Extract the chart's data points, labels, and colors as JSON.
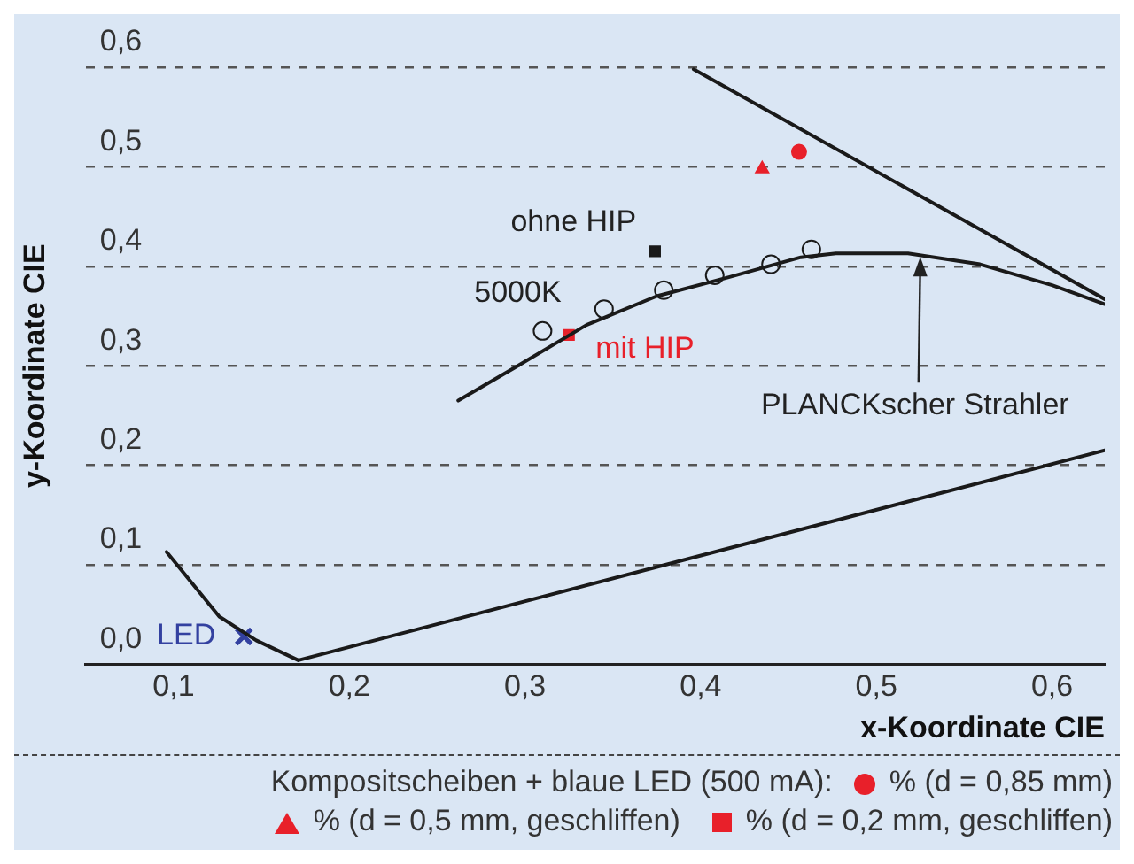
{
  "chart_data": {
    "type": "scatter",
    "xlabel": "x-Koordinate CIE",
    "ylabel": "y-Koordinate CIE",
    "legend_title": "Kompositscheiben + blaue LED (500 mA):",
    "xlim": [
      0.05,
      0.63
    ],
    "ylim": [
      0,
      0.6
    ],
    "xticks": [
      {
        "value": 0.1,
        "label": "0,1"
      },
      {
        "value": 0.2,
        "label": "0,2"
      },
      {
        "value": 0.3,
        "label": "0,3"
      },
      {
        "value": 0.4,
        "label": "0,4"
      },
      {
        "value": 0.5,
        "label": "0,5"
      },
      {
        "value": 0.6,
        "label": "0,6"
      }
    ],
    "yticks": [
      {
        "value": 0,
        "label": "0,0"
      },
      {
        "value": 0.1,
        "label": "0,1"
      },
      {
        "value": 0.2,
        "label": "0,2"
      },
      {
        "value": 0.3,
        "label": "0,3"
      },
      {
        "value": 0.4,
        "label": "0,4"
      },
      {
        "value": 0.5,
        "label": "0,5"
      },
      {
        "value": 0.6,
        "label": "0,6"
      }
    ],
    "grid": "y",
    "legend": "bottom",
    "series": [
      {
        "type": "line",
        "color": "#1a1a1a",
        "marker": "none",
        "x": [
          0.096,
          0.126,
          0.147,
          0.171,
          0.63
        ],
        "values": [
          0.113,
          0.048,
          0.024,
          0.004,
          0.215
        ]
      },
      {
        "type": "line",
        "color": "#1a1a1a",
        "marker": "none",
        "x": [
          0.396,
          0.63
        ],
        "values": [
          0.598,
          0.367
        ]
      },
      {
        "type": "line",
        "color": "#1a1a1a",
        "marker": "none",
        "x": [
          0.262,
          0.294,
          0.335,
          0.375,
          0.416,
          0.457,
          0.477,
          0.518,
          0.559,
          0.6,
          0.63
        ],
        "values": [
          0.265,
          0.298,
          0.341,
          0.37,
          0.389,
          0.409,
          0.413,
          0.413,
          0.402,
          0.381,
          0.362
        ]
      },
      {
        "type": "scatter",
        "color": "#1a1a1a",
        "marker": "circle",
        "x": [
          0.31,
          0.345,
          0.379,
          0.408,
          0.44,
          0.463
        ],
        "values": [
          0.335,
          0.357,
          0.376,
          0.391,
          0.402,
          0.417
        ]
      },
      {
        "name": "% (d = 0,85 mm)",
        "color": "#e8202a",
        "marker": "circle",
        "x": [
          0.456
        ],
        "values": [
          0.515
        ]
      },
      {
        "name": "% (d = 0,5 mm, geschliffen)",
        "color": "#e8202a",
        "marker": "triangle",
        "x": [
          0.435
        ],
        "values": [
          0.498
        ]
      },
      {
        "name": "% (d = 0,2 mm, geschliffen)",
        "color": "#e8202a",
        "marker": "square",
        "x": [
          0.325
        ],
        "values": [
          0.331
        ]
      },
      {
        "color": "#1a1a1a",
        "marker": "square",
        "x": [
          0.374
        ],
        "values": [
          0.415
        ]
      },
      {
        "color": "#3341a0",
        "marker": "cross",
        "x": [
          0.14
        ],
        "values": [
          0.028
        ]
      }
    ],
    "annotations": [
      {
        "text": "ohne HIP",
        "x": 0.374,
        "y": 0.415
      },
      {
        "text": "mit HIP",
        "x": 0.325,
        "y": 0.331
      },
      {
        "text": "5000K",
        "x": 0.31,
        "y": 0.335
      },
      {
        "text": "LED",
        "x": 0.14,
        "y": 0.028
      },
      {
        "text": "PLANCKscher Strahler",
        "x": 0.525,
        "y": 0.413
      }
    ]
  }
}
